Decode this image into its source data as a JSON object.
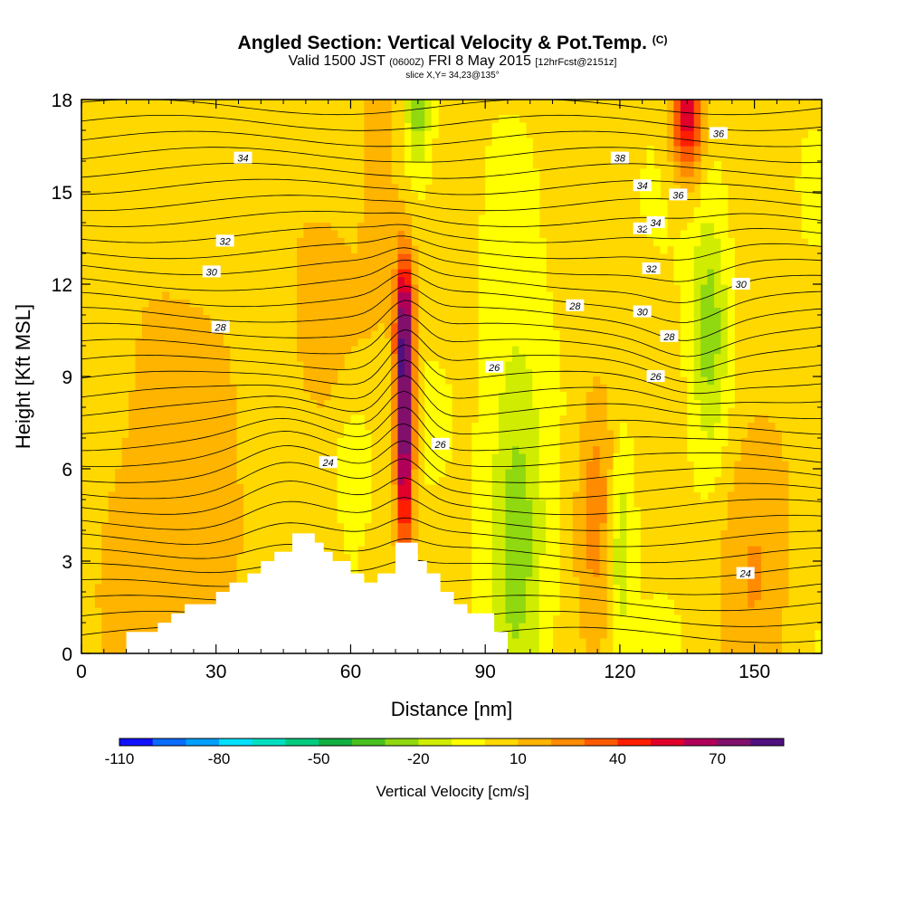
{
  "header": {
    "title_main": "Angled Section: Vertical Velocity & Pot.Temp.",
    "title_tag": "(C)",
    "valid_a": "Valid 1500 JST",
    "valid_b": "(0600Z)",
    "valid_c": "FRI 8 May 2015",
    "valid_d": "[12hrFcst@2151z]",
    "slice": "slice X,Y= 34,23@135°"
  },
  "chart_data": {
    "type": "heatmap",
    "xlabel": "Distance [nm]",
    "ylabel": "Height [Kft MSL]",
    "xlim": [
      0,
      165
    ],
    "ylim": [
      0,
      18
    ],
    "x_ticks": [
      0,
      30,
      60,
      90,
      120,
      150
    ],
    "y_ticks": [
      0,
      3,
      6,
      9,
      12,
      15,
      18
    ],
    "field": "Vertical Velocity [cm/s]",
    "colorbar": {
      "label": "Vertical Velocity [cm/s]",
      "tick_labels": [
        -110,
        -80,
        -50,
        -20,
        10,
        40,
        70
      ],
      "colors": [
        "#1010ff",
        "#0a6cff",
        "#00a0ff",
        "#00e0ff",
        "#00e0c0",
        "#00cc80",
        "#10b040",
        "#48c020",
        "#90d810",
        "#d0ec00",
        "#ffff00",
        "#ffd800",
        "#ffb400",
        "#ff8c00",
        "#ff5a00",
        "#ff1e00",
        "#e0002a",
        "#b0005a",
        "#80106c",
        "#501080"
      ]
    },
    "terrain_profile": [
      [
        10,
        0.7
      ],
      [
        17,
        1.0
      ],
      [
        20,
        1.3
      ],
      [
        23,
        1.6
      ],
      [
        30,
        2.0
      ],
      [
        33,
        2.3
      ],
      [
        37,
        2.6
      ],
      [
        40,
        3.0
      ],
      [
        43,
        3.3
      ],
      [
        47,
        3.9
      ],
      [
        52,
        3.6
      ],
      [
        54,
        3.3
      ],
      [
        56,
        3.0
      ],
      [
        60,
        2.6
      ],
      [
        63,
        2.3
      ],
      [
        66,
        2.6
      ],
      [
        70,
        3.6
      ],
      [
        75,
        3.0
      ],
      [
        77,
        2.6
      ],
      [
        80,
        2.0
      ],
      [
        83,
        1.6
      ],
      [
        86,
        1.3
      ],
      [
        92,
        0.7
      ]
    ],
    "velocity_features": [
      {
        "x": 72,
        "y": 7.5,
        "sx": 1.4,
        "sy": 2.8,
        "value": 85
      },
      {
        "x": 72,
        "y": 11.0,
        "sx": 1.5,
        "sy": 1.5,
        "value": 40
      },
      {
        "x": 66,
        "y": 15.5,
        "sx": 3.0,
        "sy": 3.5,
        "value": 15
      },
      {
        "x": 135,
        "y": 17.5,
        "sx": 2.5,
        "sy": 1.5,
        "value": 55
      },
      {
        "x": 115,
        "y": 5.0,
        "sx": 3.5,
        "sy": 3.0,
        "value": 25
      },
      {
        "x": 150,
        "y": 3.5,
        "sx": 6.0,
        "sy": 4.0,
        "value": 18
      },
      {
        "x": 20,
        "y": 5.0,
        "sx": 14.0,
        "sy": 6.0,
        "value": 15
      },
      {
        "x": 55,
        "y": 11.0,
        "sx": 6.0,
        "sy": 3.0,
        "value": 15
      },
      {
        "x": 97,
        "y": 4.5,
        "sx": 4.5,
        "sy": 4.5,
        "value": -28
      },
      {
        "x": 140,
        "y": 10.5,
        "sx": 3.0,
        "sy": 3.0,
        "value": -28
      },
      {
        "x": 75,
        "y": 17.5,
        "sx": 2.0,
        "sy": 1.5,
        "value": -28
      },
      {
        "x": 120,
        "y": 3.5,
        "sx": 2.0,
        "sy": 2.5,
        "value": -25
      },
      {
        "x": 60,
        "y": 7.0,
        "sx": 4.0,
        "sy": 2.0,
        "value": -12
      }
    ],
    "pot_temp_labels": [
      {
        "value": 24,
        "x": 55,
        "y": 6.2
      },
      {
        "value": 24,
        "x": 148,
        "y": 2.6
      },
      {
        "value": 26,
        "x": 92,
        "y": 9.3
      },
      {
        "value": 26,
        "x": 80,
        "y": 6.8
      },
      {
        "value": 26,
        "x": 128,
        "y": 9.0
      },
      {
        "value": 28,
        "x": 31,
        "y": 10.6
      },
      {
        "value": 28,
        "x": 110,
        "y": 11.3
      },
      {
        "value": 28,
        "x": 131,
        "y": 10.3
      },
      {
        "value": 30,
        "x": 29,
        "y": 12.4
      },
      {
        "value": 30,
        "x": 147,
        "y": 12.0
      },
      {
        "value": 30,
        "x": 125,
        "y": 11.1
      },
      {
        "value": 32,
        "x": 32,
        "y": 13.4
      },
      {
        "value": 32,
        "x": 125,
        "y": 13.8
      },
      {
        "value": 32,
        "x": 127,
        "y": 12.5
      },
      {
        "value": 34,
        "x": 36,
        "y": 16.1
      },
      {
        "value": 34,
        "x": 125,
        "y": 15.2
      },
      {
        "value": 34,
        "x": 128,
        "y": 14.0
      },
      {
        "value": 36,
        "x": 142,
        "y": 16.9
      },
      {
        "value": 36,
        "x": 133,
        "y": 14.9
      },
      {
        "value": 38,
        "x": 120,
        "y": 16.1
      }
    ]
  }
}
